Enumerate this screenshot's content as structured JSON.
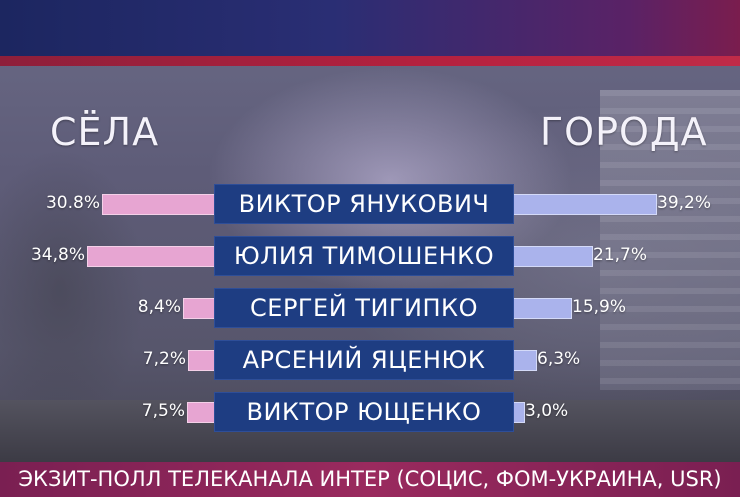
{
  "chart_data": {
    "type": "bar",
    "left_header": "СЁЛА",
    "right_header": "ГОРОДА",
    "categories": [
      "ВИКТОР ЯНУКОВИЧ",
      "ЮЛИЯ ТИМОШЕНКО",
      "СЕРГЕЙ ТИГИПКО",
      "АРСЕНИЙ ЯЦЕНЮК",
      "ВИКТОР ЮЩЕНКО"
    ],
    "series": [
      {
        "name": "СЁЛА",
        "values": [
          30.8,
          34.8,
          8.4,
          7.2,
          7.5
        ],
        "labels": [
          "30.8%",
          "34,8%",
          "8,4%",
          "7,2%",
          "7,5%"
        ],
        "color": "#e7a5d2"
      },
      {
        "name": "ГОРОДА",
        "values": [
          39.2,
          21.7,
          15.9,
          6.3,
          3.0
        ],
        "labels": [
          "39,2%",
          "21,7%",
          "15,9%",
          "6,3%",
          "3,0%"
        ],
        "color": "#aab3ec"
      }
    ],
    "orientation": "horizontal-diverging"
  },
  "footer": {
    "text": "ЭКЗИТ-ПОЛЛ ТЕЛЕКАНАЛА ИНТЕР (СОЦИС, ФОМ-УКРАИНА, USR)"
  },
  "colors": {
    "name_box": "#1e3d82",
    "footer": "#9a2a5e",
    "header_band": "#2a2e74"
  }
}
